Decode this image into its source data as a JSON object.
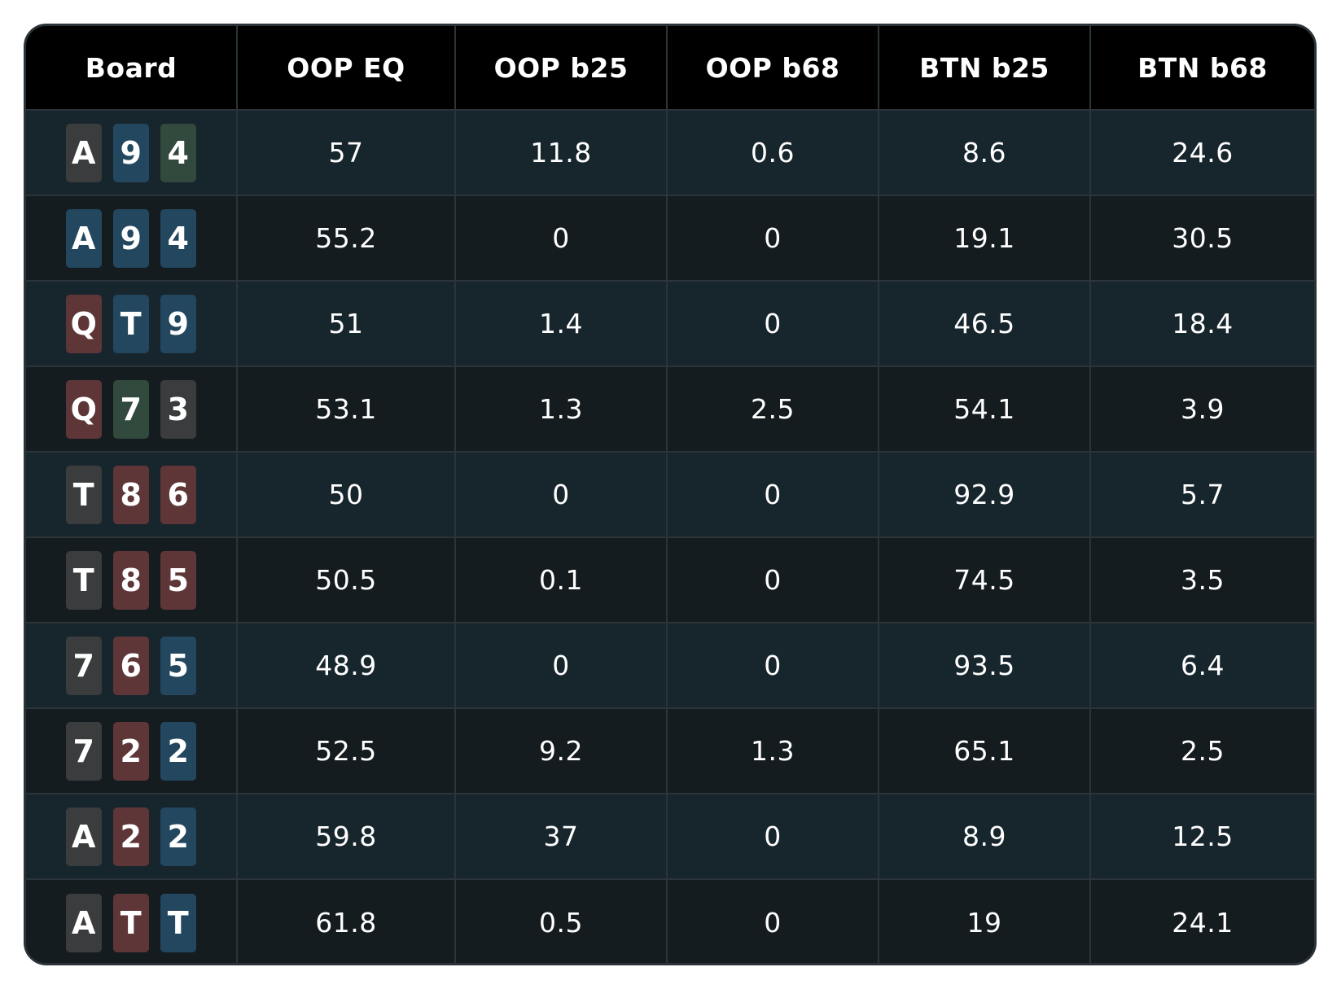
{
  "suit_colors": {
    "s": "#3a3c3d",
    "h": "#5e3638",
    "d": "#23475e",
    "c": "#32493d"
  },
  "headers": [
    "Board",
    "OOP EQ",
    "OOP b25",
    "OOP b68",
    "BTN b25",
    "BTN b68"
  ],
  "rows": [
    {
      "board": [
        {
          "rank": "A",
          "suit": "s"
        },
        {
          "rank": "9",
          "suit": "d"
        },
        {
          "rank": "4",
          "suit": "c"
        }
      ],
      "values": [
        "57",
        "11.8",
        "0.6",
        "8.6",
        "24.6"
      ]
    },
    {
      "board": [
        {
          "rank": "A",
          "suit": "d"
        },
        {
          "rank": "9",
          "suit": "d"
        },
        {
          "rank": "4",
          "suit": "d"
        }
      ],
      "values": [
        "55.2",
        "0",
        "0",
        "19.1",
        "30.5"
      ]
    },
    {
      "board": [
        {
          "rank": "Q",
          "suit": "h"
        },
        {
          "rank": "T",
          "suit": "d"
        },
        {
          "rank": "9",
          "suit": "d"
        }
      ],
      "values": [
        "51",
        "1.4",
        "0",
        "46.5",
        "18.4"
      ]
    },
    {
      "board": [
        {
          "rank": "Q",
          "suit": "h"
        },
        {
          "rank": "7",
          "suit": "c"
        },
        {
          "rank": "3",
          "suit": "s"
        }
      ],
      "values": [
        "53.1",
        "1.3",
        "2.5",
        "54.1",
        "3.9"
      ]
    },
    {
      "board": [
        {
          "rank": "T",
          "suit": "s"
        },
        {
          "rank": "8",
          "suit": "h"
        },
        {
          "rank": "6",
          "suit": "h"
        }
      ],
      "values": [
        "50",
        "0",
        "0",
        "92.9",
        "5.7"
      ]
    },
    {
      "board": [
        {
          "rank": "T",
          "suit": "s"
        },
        {
          "rank": "8",
          "suit": "h"
        },
        {
          "rank": "5",
          "suit": "h"
        }
      ],
      "values": [
        "50.5",
        "0.1",
        "0",
        "74.5",
        "3.5"
      ]
    },
    {
      "board": [
        {
          "rank": "7",
          "suit": "s"
        },
        {
          "rank": "6",
          "suit": "h"
        },
        {
          "rank": "5",
          "suit": "d"
        }
      ],
      "values": [
        "48.9",
        "0",
        "0",
        "93.5",
        "6.4"
      ]
    },
    {
      "board": [
        {
          "rank": "7",
          "suit": "s"
        },
        {
          "rank": "2",
          "suit": "h"
        },
        {
          "rank": "2",
          "suit": "d"
        }
      ],
      "values": [
        "52.5",
        "9.2",
        "1.3",
        "65.1",
        "2.5"
      ]
    },
    {
      "board": [
        {
          "rank": "A",
          "suit": "s"
        },
        {
          "rank": "2",
          "suit": "h"
        },
        {
          "rank": "2",
          "suit": "d"
        }
      ],
      "values": [
        "59.8",
        "37",
        "0",
        "8.9",
        "12.5"
      ]
    },
    {
      "board": [
        {
          "rank": "A",
          "suit": "s"
        },
        {
          "rank": "T",
          "suit": "h"
        },
        {
          "rank": "T",
          "suit": "d"
        }
      ],
      "values": [
        "61.8",
        "0.5",
        "0",
        "19",
        "24.1"
      ]
    }
  ]
}
